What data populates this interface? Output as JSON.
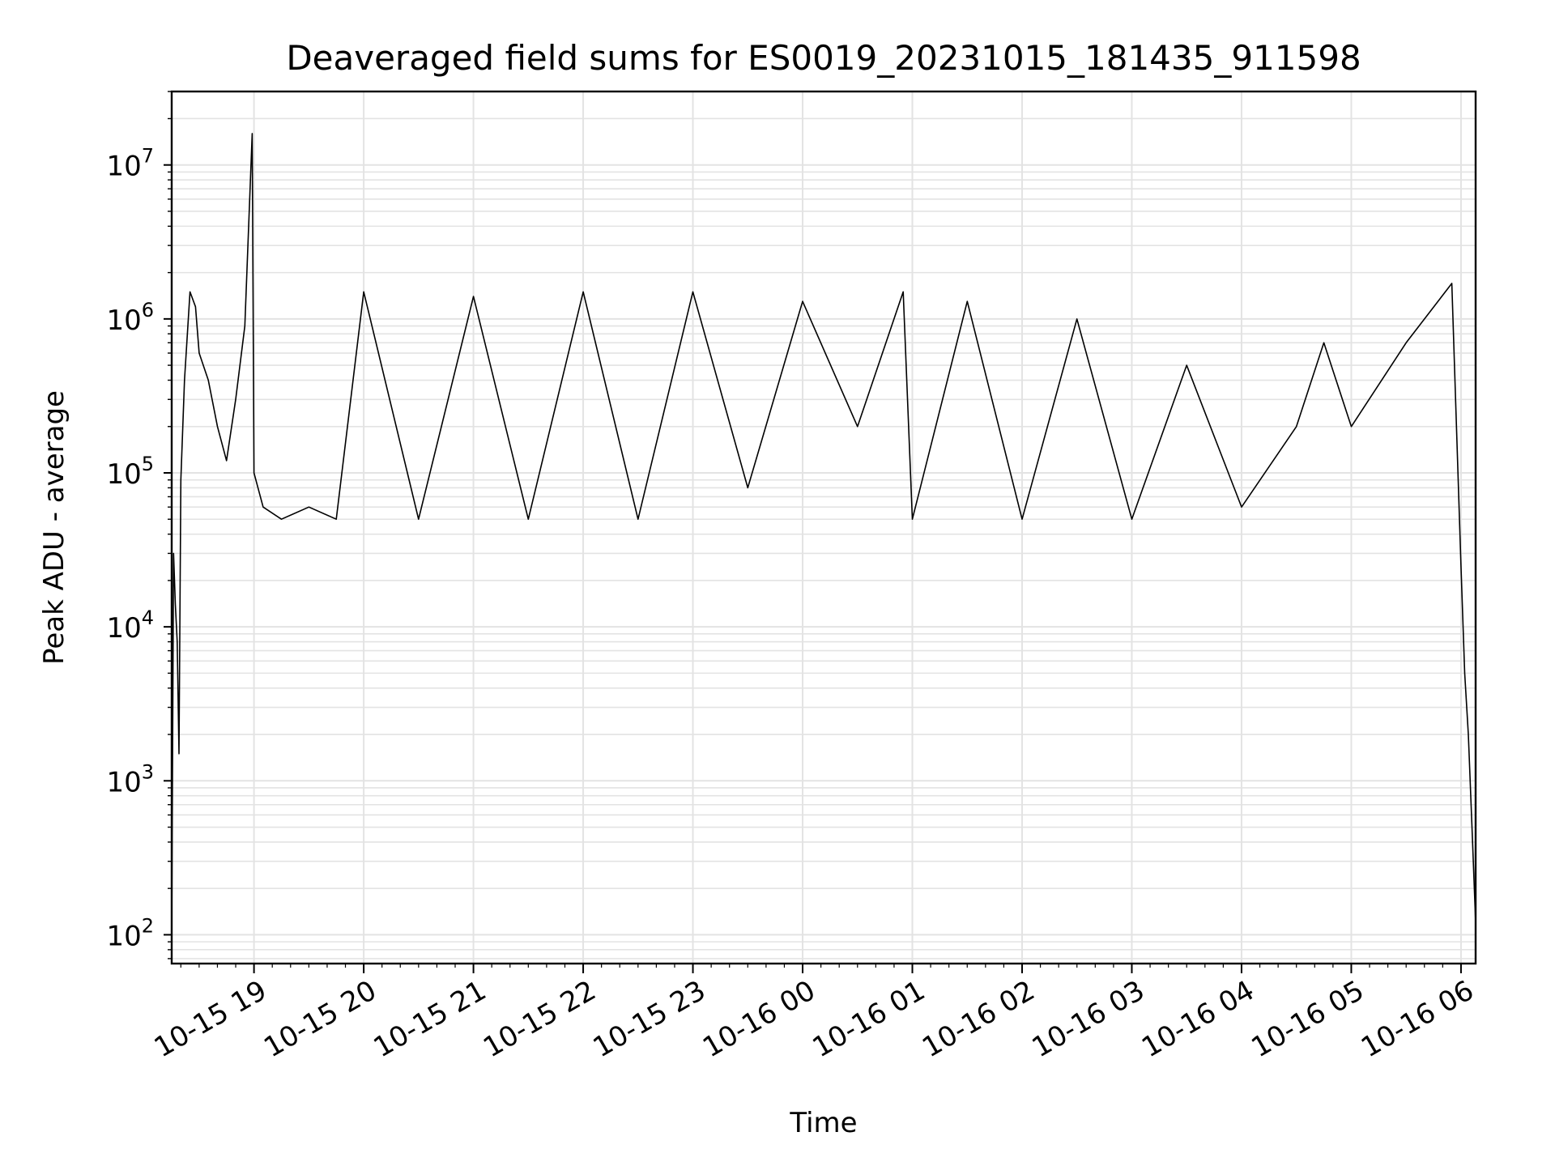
{
  "chart_data": {
    "type": "line",
    "title": "Deaveraged field sums for ES0019_20231015_181435_911598",
    "xlabel": "Time",
    "ylabel": "Peak ADU - average",
    "y_scale": "log",
    "ylim": [
      65,
      30000000
    ],
    "xlim": [
      "2023-10-15 18:15:00",
      "2023-10-16 06:08:00"
    ],
    "grid": true,
    "line_color": "#000000",
    "grid_color": "#e3e3e3",
    "x_ticks": [
      {
        "time": "2023-10-15 19:00",
        "label": "10-15 19"
      },
      {
        "time": "2023-10-15 20:00",
        "label": "10-15 20"
      },
      {
        "time": "2023-10-15 21:00",
        "label": "10-15 21"
      },
      {
        "time": "2023-10-15 22:00",
        "label": "10-15 22"
      },
      {
        "time": "2023-10-15 23:00",
        "label": "10-15 23"
      },
      {
        "time": "2023-10-16 00:00",
        "label": "10-16 00"
      },
      {
        "time": "2023-10-16 01:00",
        "label": "10-16 01"
      },
      {
        "time": "2023-10-16 02:00",
        "label": "10-16 02"
      },
      {
        "time": "2023-10-16 03:00",
        "label": "10-16 03"
      },
      {
        "time": "2023-10-16 04:00",
        "label": "10-16 04"
      },
      {
        "time": "2023-10-16 05:00",
        "label": "10-16 05"
      },
      {
        "time": "2023-10-16 06:00",
        "label": "10-16 06"
      }
    ],
    "y_ticks": [
      {
        "value": 100,
        "base": "10",
        "exp": "2"
      },
      {
        "value": 1000,
        "base": "10",
        "exp": "3"
      },
      {
        "value": 10000,
        "base": "10",
        "exp": "4"
      },
      {
        "value": 100000,
        "base": "10",
        "exp": "5"
      },
      {
        "value": 1000000,
        "base": "10",
        "exp": "6"
      },
      {
        "value": 10000000,
        "base": "10",
        "exp": "7"
      }
    ],
    "series": [
      {
        "x": [
          "2023-10-15 18:15",
          "2023-10-15 18:16",
          "2023-10-15 18:17",
          "2023-10-15 18:18",
          "2023-10-15 18:19",
          "2023-10-15 18:20",
          "2023-10-15 18:22",
          "2023-10-15 18:25",
          "2023-10-15 18:28",
          "2023-10-15 18:30",
          "2023-10-15 18:35",
          "2023-10-15 18:40",
          "2023-10-15 18:45",
          "2023-10-15 18:50",
          "2023-10-15 18:55",
          "2023-10-15 18:59",
          "2023-10-15 19:00",
          "2023-10-15 19:05",
          "2023-10-15 19:15",
          "2023-10-15 19:30",
          "2023-10-15 19:45",
          "2023-10-15 20:00",
          "2023-10-15 20:30",
          "2023-10-15 21:00",
          "2023-10-15 21:30",
          "2023-10-15 22:00",
          "2023-10-15 22:30",
          "2023-10-15 23:00",
          "2023-10-15 23:30",
          "2023-10-16 00:00",
          "2023-10-16 00:30",
          "2023-10-16 00:55",
          "2023-10-16 01:00",
          "2023-10-16 01:30",
          "2023-10-16 02:00",
          "2023-10-16 02:30",
          "2023-10-16 03:00",
          "2023-10-16 03:30",
          "2023-10-16 04:00",
          "2023-10-16 04:30",
          "2023-10-16 04:45",
          "2023-10-16 05:00",
          "2023-10-16 05:30",
          "2023-10-16 05:55",
          "2023-10-16 06:00",
          "2023-10-16 06:02",
          "2023-10-16 06:04",
          "2023-10-16 06:06",
          "2023-10-16 06:08"
        ],
        "y": [
          100,
          30000,
          14000,
          8000,
          1500,
          90000,
          400000,
          1500000,
          1200000,
          600000,
          400000,
          200000,
          120000,
          300000,
          900000,
          16000000,
          100000,
          60000,
          50000,
          60000,
          50000,
          1500000,
          50000,
          1400000,
          50000,
          1500000,
          50000,
          1500000,
          80000,
          1300000,
          200000,
          1500000,
          50000,
          1300000,
          50000,
          1000000,
          50000,
          500000,
          60000,
          200000,
          700000,
          200000,
          700000,
          1700000,
          25000,
          5000,
          2000,
          500,
          120
        ]
      }
    ]
  }
}
